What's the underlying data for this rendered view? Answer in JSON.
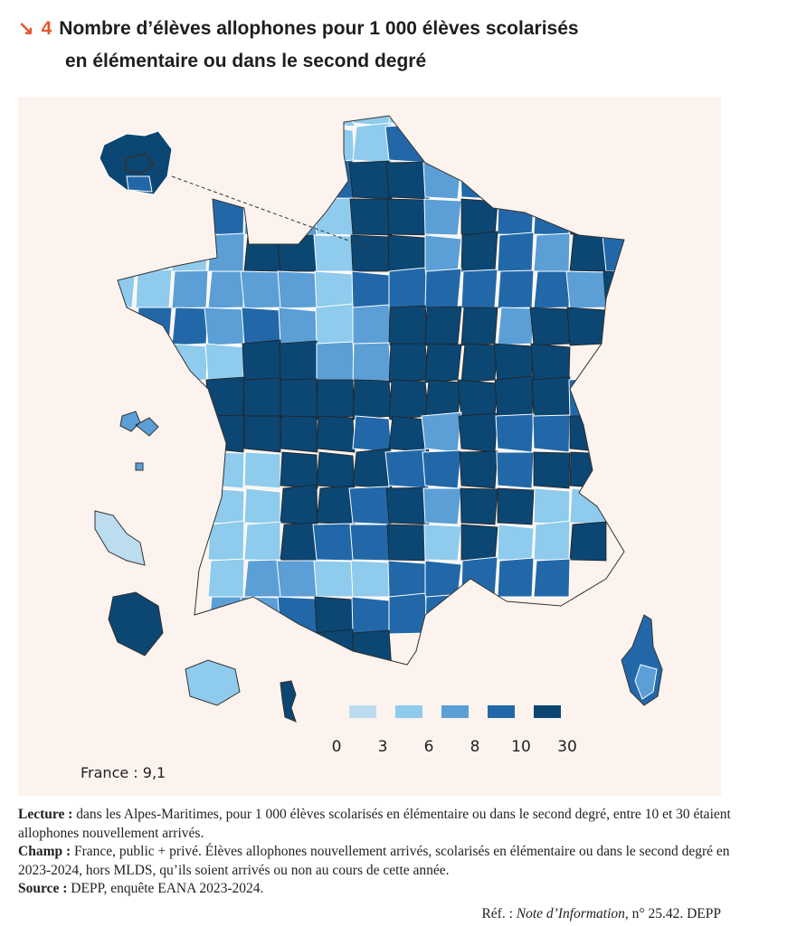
{
  "figure": {
    "icon": "arrow-down-right-icon",
    "number": "4",
    "title_line1": "Nombre d’élèves allophones pour 1 000 élèves scolarisés",
    "title_line2": "en élémentaire ou dans le second degré"
  },
  "legend": {
    "classes": [
      {
        "color": "#bcdcf0"
      },
      {
        "color": "#8fcbec"
      },
      {
        "color": "#5b9fd6"
      },
      {
        "color": "#2268a8"
      },
      {
        "color": "#0c4672"
      }
    ],
    "breaks": [
      "0",
      "3",
      "6",
      "8",
      "10",
      "30"
    ]
  },
  "france_label": "France : 9,1",
  "notes": {
    "lecture_label": "Lecture :",
    "lecture_text": " dans les Alpes-Maritimes, pour 1 000 élèves scolarisés en élémentaire ou dans le second degré, entre 10 et 30 étaient allophones nouvellement arrivés.",
    "champ_label": "Champ :",
    "champ_text": " France, public + privé. Élèves allophones nouvellement arrivés, scolarisés en élémentaire ou dans le second degré en 2023-2024, hors MLDS, qu’ils soient arrivés ou non au cours de cette année.",
    "source_label": "Source :",
    "source_text": " DEPP, enquête EANA 2023-2024.",
    "ref_prefix": "Réf. : ",
    "ref_italic": "Note d’Information",
    "ref_suffix": ", n° 25.42. DEPP"
  },
  "colors": {
    "accent": "#e4572e",
    "background": "#fdf3ee"
  }
}
